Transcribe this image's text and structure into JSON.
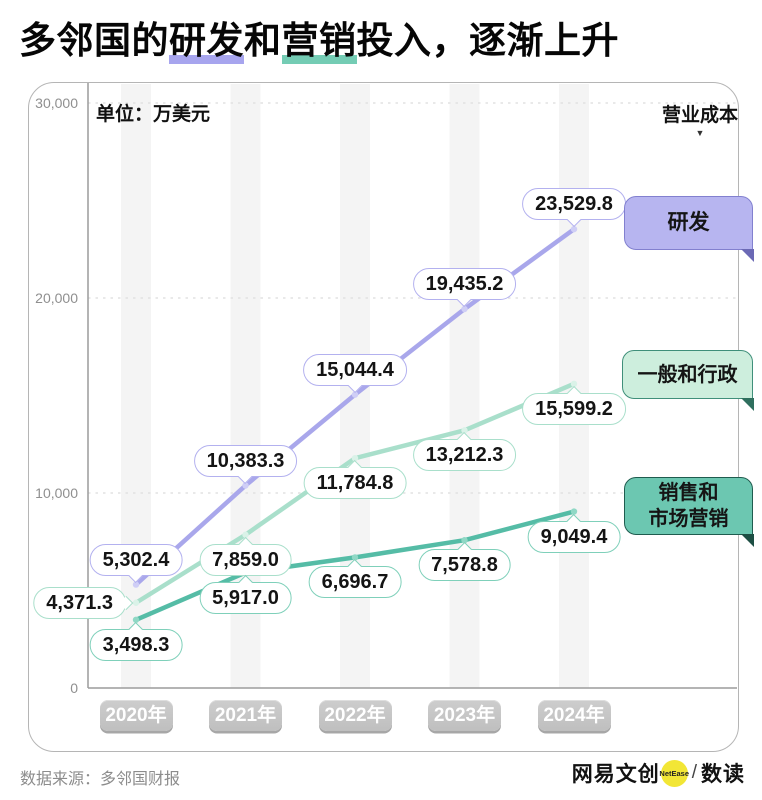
{
  "title": {
    "segments": [
      {
        "text": "多邻国的",
        "highlight": "none"
      },
      {
        "text": "研发",
        "highlight": "purple"
      },
      {
        "text": "和",
        "highlight": "none"
      },
      {
        "text": "营销",
        "highlight": "teal"
      },
      {
        "text": "投入，逐渐上升",
        "highlight": "none"
      }
    ],
    "highlight_colors": {
      "purple": "#a7a5ee",
      "teal": "#74ccb4"
    }
  },
  "unit_label": "单位：万美元",
  "legend": {
    "title": "营业成本",
    "arrow": "▼"
  },
  "chart_data": {
    "type": "line",
    "title": "多邻国的研发和营销投入，逐渐上升",
    "unit": "万美元",
    "x_categories": [
      "2020年",
      "2021年",
      "2022年",
      "2023年",
      "2024年"
    ],
    "ylim": [
      0,
      30000
    ],
    "yticks": [
      {
        "value": 30000,
        "label": "30,000"
      },
      {
        "value": 20000,
        "label": "20,000"
      },
      {
        "value": 10000,
        "label": "10,000"
      },
      {
        "value": 0,
        "label": "0"
      }
    ],
    "grid": "horizontal-dashed",
    "legend_title": "营业成本",
    "series": [
      {
        "name": "研发",
        "color": "#a9a7eb",
        "dot_color": "#cfcef6",
        "bubble_border": "#b3b1ef",
        "box": {
          "label_lines": [
            "研发"
          ],
          "fill": "#b7b5f0",
          "border": "#8280cf",
          "fold": "#6b69b5"
        },
        "values": [
          5302.4,
          10383.3,
          15044.4,
          19435.2,
          23529.8
        ],
        "labels": [
          "5,302.4",
          "10,383.3",
          "15,044.4",
          "19,435.2",
          "23,529.8"
        ],
        "label_pos": [
          "above",
          "above",
          "above",
          "above",
          "above"
        ]
      },
      {
        "name": "一般和行政",
        "color": "#a9dfcb",
        "dot_color": "#daf2e8",
        "bubble_border": "#a9dfcb",
        "box": {
          "label_lines": [
            "一般和行政"
          ],
          "fill": "#cdeedd",
          "border": "#3f8f7a",
          "fold": "#2f6f5e"
        },
        "values": [
          4371.3,
          7859.0,
          11784.8,
          13212.3,
          15599.2
        ],
        "labels": [
          "4,371.3",
          "7,859.0",
          "11,784.8",
          "13,212.3",
          "15,599.2"
        ],
        "label_pos": [
          "left",
          "below",
          "below",
          "below",
          "below"
        ]
      },
      {
        "name": "销售和市场营销",
        "color": "#55bca6",
        "dot_color": "#8fd8c5",
        "bubble_border": "#7fd0ba",
        "box": {
          "label_lines": [
            "销售和",
            "市场营销"
          ],
          "fill": "#6cc7b1",
          "border": "#1f5c4f",
          "fold": "#1d4f44"
        },
        "values": [
          3498.3,
          5917.0,
          6696.7,
          7578.8,
          9049.4
        ],
        "labels": [
          "3,498.3",
          "5,917.0",
          "6,696.7",
          "7,578.8",
          "9,049.4"
        ],
        "label_pos": [
          "below",
          "below",
          "below",
          "below",
          "below"
        ]
      }
    ]
  },
  "footer": {
    "source": "数据来源：多邻国财报",
    "brand": "网易文创",
    "badge": "NetEase",
    "separator": "/",
    "brand2": "数读"
  }
}
